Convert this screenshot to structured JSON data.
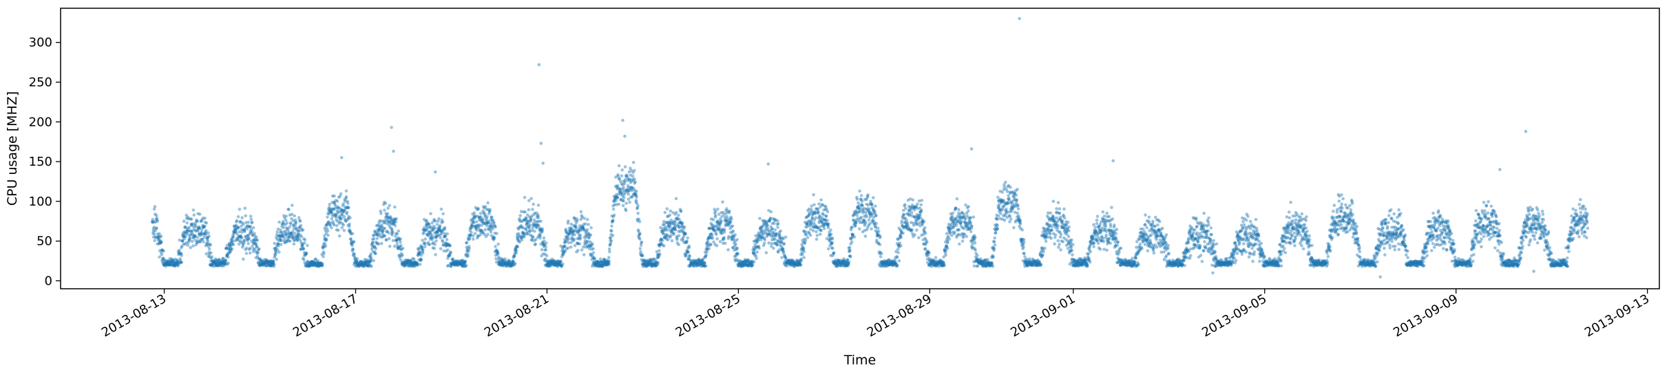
{
  "chart_data": {
    "type": "scatter",
    "title": "",
    "xlabel": "Time",
    "ylabel": "CPU usage [MHZ]",
    "xlim": [
      "2013-08-10T20:00",
      "2013-09-13T06:00"
    ],
    "ylim": [
      -10,
      343
    ],
    "grid": false,
    "point_color": "#1f77b4",
    "x_ticks": [
      "2013-08-13",
      "2013-08-17",
      "2013-08-21",
      "2013-08-25",
      "2013-08-29",
      "2013-09-01",
      "2013-09-05",
      "2013-09-09",
      "2013-09-13"
    ],
    "y_ticks": [
      0,
      50,
      100,
      150,
      200,
      250,
      300
    ],
    "x_range": [
      "2013-08-12T18:00",
      "2013-09-11T18:00"
    ],
    "daily_pattern": {
      "low_level": 22,
      "low_hours": [
        0,
        7
      ],
      "dates": [
        "2013-08-12",
        "2013-08-13",
        "2013-08-14",
        "2013-08-15",
        "2013-08-16",
        "2013-08-17",
        "2013-08-18",
        "2013-08-19",
        "2013-08-20",
        "2013-08-21",
        "2013-08-22",
        "2013-08-23",
        "2013-08-24",
        "2013-08-25",
        "2013-08-26",
        "2013-08-27",
        "2013-08-28",
        "2013-08-29",
        "2013-08-30",
        "2013-08-31",
        "2013-09-01",
        "2013-09-02",
        "2013-09-03",
        "2013-09-04",
        "2013-09-05",
        "2013-09-06",
        "2013-09-07",
        "2013-09-08",
        "2013-09-09",
        "2013-09-10",
        "2013-09-11"
      ],
      "peak_values": [
        70,
        65,
        60,
        63,
        85,
        65,
        62,
        75,
        70,
        60,
        120,
        68,
        70,
        60,
        78,
        85,
        78,
        75,
        98,
        70,
        62,
        60,
        55,
        55,
        65,
        80,
        65,
        65,
        72,
        70,
        75
      ]
    },
    "outliers": [
      {
        "x": "2013-08-16T17:00",
        "y": 155
      },
      {
        "x": "2013-08-17T18:00",
        "y": 193
      },
      {
        "x": "2013-08-17T19:00",
        "y": 163
      },
      {
        "x": "2013-08-18T16:00",
        "y": 137
      },
      {
        "x": "2013-08-20T20:00",
        "y": 272
      },
      {
        "x": "2013-08-20T21:00",
        "y": 173
      },
      {
        "x": "2013-08-20T22:00",
        "y": 148
      },
      {
        "x": "2013-08-22T14:00",
        "y": 202
      },
      {
        "x": "2013-08-22T15:00",
        "y": 182
      },
      {
        "x": "2013-08-25T15:00",
        "y": 147
      },
      {
        "x": "2013-08-29T21:00",
        "y": 166
      },
      {
        "x": "2013-08-30T21:00",
        "y": 330
      },
      {
        "x": "2013-09-01T20:00",
        "y": 151
      },
      {
        "x": "2013-09-10T11:00",
        "y": 188
      },
      {
        "x": "2013-09-09T22:00",
        "y": 140
      },
      {
        "x": "2013-09-07T10:00",
        "y": 5
      },
      {
        "x": "2013-09-10T15:00",
        "y": 12
      },
      {
        "x": "2013-09-03T22:00",
        "y": 10
      }
    ]
  }
}
